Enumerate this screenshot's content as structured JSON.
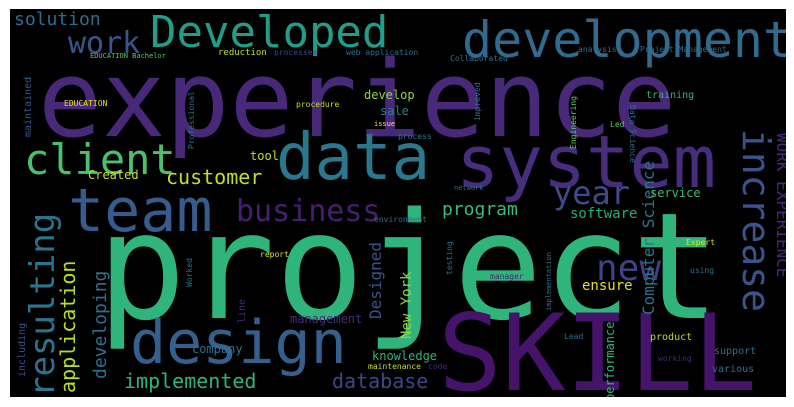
{
  "colors": {
    "purple": "#46136b",
    "violet": "#482f7e",
    "indigo": "#3c4f8a",
    "blue": "#365c8d",
    "steel": "#2d708e",
    "teal": "#21918c",
    "sea": "#28ae80",
    "green": "#3fbc73",
    "lime": "#73d056",
    "yellow": "#b5de2b",
    "gold": "#d8e219"
  },
  "words": [
    {
      "id": "project",
      "text": "project"
    },
    {
      "id": "experience",
      "text": "experience"
    },
    {
      "id": "skill",
      "text": "SKILL"
    },
    {
      "id": "data",
      "text": "data"
    },
    {
      "id": "system",
      "text": "system"
    },
    {
      "id": "team",
      "text": "team"
    },
    {
      "id": "design",
      "text": "design"
    },
    {
      "id": "development",
      "text": "development"
    },
    {
      "id": "developed",
      "text": "Developed"
    },
    {
      "id": "client",
      "text": "client"
    },
    {
      "id": "business",
      "text": "business"
    },
    {
      "id": "year",
      "text": "year"
    },
    {
      "id": "increase",
      "text": "increase"
    },
    {
      "id": "resulting",
      "text": "resulting"
    },
    {
      "id": "new",
      "text": "new"
    },
    {
      "id": "application",
      "text": "application"
    },
    {
      "id": "work",
      "text": "work"
    },
    {
      "id": "solution",
      "text": "solution"
    },
    {
      "id": "customer",
      "text": "customer"
    },
    {
      "id": "program",
      "text": "program"
    },
    {
      "id": "developing",
      "text": "developing"
    },
    {
      "id": "implemented",
      "text": "implemented"
    },
    {
      "id": "database",
      "text": "database"
    },
    {
      "id": "software",
      "text": "software"
    },
    {
      "id": "work-experience",
      "text": "WORK EXPERIENCE"
    },
    {
      "id": "computer-science",
      "text": "Computer Science"
    },
    {
      "id": "designed",
      "text": "Designed"
    },
    {
      "id": "new-york",
      "text": "New York"
    },
    {
      "id": "company",
      "text": "company"
    },
    {
      "id": "management",
      "text": "management"
    },
    {
      "id": "knowledge",
      "text": "knowledge"
    },
    {
      "id": "ensure",
      "text": "ensure"
    },
    {
      "id": "performance",
      "text": "performance"
    },
    {
      "id": "created",
      "text": "Created"
    },
    {
      "id": "tool",
      "text": "tool"
    },
    {
      "id": "develop",
      "text": "develop"
    },
    {
      "id": "sale",
      "text": "sale"
    },
    {
      "id": "service",
      "text": "service"
    },
    {
      "id": "maintained",
      "text": "maintained"
    },
    {
      "id": "including",
      "text": "including"
    },
    {
      "id": "product",
      "text": "product"
    },
    {
      "id": "support",
      "text": "support"
    },
    {
      "id": "training",
      "text": "training"
    },
    {
      "id": "analysis",
      "text": "analysis"
    },
    {
      "id": "education-bachelor",
      "text": "EDUCATION Bachelor"
    },
    {
      "id": "reduction",
      "text": "reduction"
    },
    {
      "id": "processes",
      "text": "processes"
    },
    {
      "id": "web-application",
      "text": "web application"
    },
    {
      "id": "collaborated",
      "text": "Collaborated"
    },
    {
      "id": "project-management",
      "text": "Project Management"
    },
    {
      "id": "education",
      "text": "EDUCATION"
    },
    {
      "id": "procedure",
      "text": "procedure"
    },
    {
      "id": "issue",
      "text": "issue"
    },
    {
      "id": "process",
      "text": "process"
    },
    {
      "id": "improved",
      "text": "improved"
    },
    {
      "id": "engineering",
      "text": "Engineering"
    },
    {
      "id": "led",
      "text": "Led"
    },
    {
      "id": "data-science",
      "text": "Data Science"
    },
    {
      "id": "professional",
      "text": "Professional"
    },
    {
      "id": "network",
      "text": "network"
    },
    {
      "id": "environment",
      "text": "environment"
    },
    {
      "id": "expert",
      "text": "Expert"
    },
    {
      "id": "using",
      "text": "using"
    },
    {
      "id": "report",
      "text": "report"
    },
    {
      "id": "worked",
      "text": "Worked"
    },
    {
      "id": "line",
      "text": "line"
    },
    {
      "id": "testing",
      "text": "testing"
    },
    {
      "id": "manager",
      "text": "manager"
    },
    {
      "id": "implementation",
      "text": "implementation"
    },
    {
      "id": "lead",
      "text": "Lead"
    },
    {
      "id": "working",
      "text": "working"
    },
    {
      "id": "various",
      "text": "various"
    },
    {
      "id": "maintenance",
      "text": "maintenance"
    },
    {
      "id": "code",
      "text": "code"
    }
  ]
}
